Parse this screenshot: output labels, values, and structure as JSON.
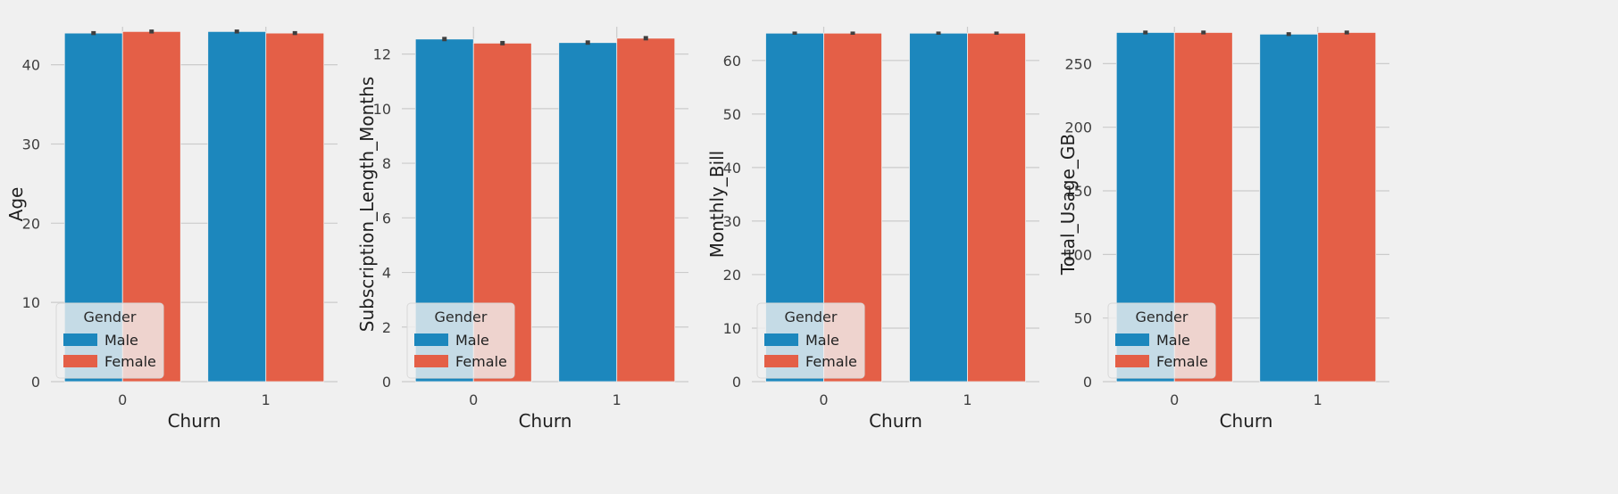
{
  "colors": {
    "background": "#f0f0f0",
    "grid": "#cbcbcb",
    "male": "#1c87bd",
    "female": "#e45f47",
    "errorbar": "#3f3f3f",
    "legend_bg": "#f0f0f0"
  },
  "chart_data": [
    {
      "type": "bar",
      "xlabel": "Churn",
      "ylabel": "Age",
      "categories": [
        "0",
        "1"
      ],
      "ylim": [
        0,
        44.8
      ],
      "yticks": [
        0,
        10,
        20,
        30,
        40
      ],
      "grid": true,
      "legend": {
        "title": "Gender",
        "placement": "lower-left"
      },
      "series": [
        {
          "name": "Male",
          "values": [
            44.0,
            44.2
          ],
          "err": [
            0.25,
            0.25
          ]
        },
        {
          "name": "Female",
          "values": [
            44.2,
            44.0
          ],
          "err": [
            0.25,
            0.25
          ]
        }
      ]
    },
    {
      "type": "bar",
      "xlabel": "Churn",
      "ylabel": "Subscription_Length_Months",
      "categories": [
        "0",
        "1"
      ],
      "ylim": [
        0,
        13.0
      ],
      "yticks": [
        0,
        2,
        4,
        6,
        8,
        10,
        12
      ],
      "grid": true,
      "legend": {
        "title": "Gender",
        "placement": "lower-left"
      },
      "series": [
        {
          "name": "Male",
          "values": [
            12.55,
            12.42
          ],
          "err": [
            0.08,
            0.08
          ]
        },
        {
          "name": "Female",
          "values": [
            12.4,
            12.58
          ],
          "err": [
            0.08,
            0.08
          ]
        }
      ]
    },
    {
      "type": "bar",
      "xlabel": "Churn",
      "ylabel": "Monthly_Bill",
      "categories": [
        "0",
        "1"
      ],
      "ylim": [
        0,
        66.3
      ],
      "yticks": [
        0,
        10,
        20,
        30,
        40,
        50,
        60
      ],
      "grid": true,
      "legend": {
        "title": "Gender",
        "placement": "lower-left"
      },
      "series": [
        {
          "name": "Male",
          "values": [
            65.1,
            65.1
          ],
          "err": [
            0.3,
            0.3
          ]
        },
        {
          "name": "Female",
          "values": [
            65.1,
            65.1
          ],
          "err": [
            0.3,
            0.3
          ]
        }
      ]
    },
    {
      "type": "bar",
      "xlabel": "Churn",
      "ylabel": "Total_Usage_GB",
      "categories": [
        "0",
        "1"
      ],
      "ylim": [
        0,
        279
      ],
      "yticks": [
        0,
        50,
        100,
        150,
        200,
        250
      ],
      "grid": true,
      "legend": {
        "title": "Gender",
        "placement": "lower-left"
      },
      "series": [
        {
          "name": "Male",
          "values": [
            274.5,
            273.2
          ],
          "err": [
            1.5,
            1.5
          ]
        },
        {
          "name": "Female",
          "values": [
            274.5,
            274.5
          ],
          "err": [
            1.5,
            1.5
          ]
        }
      ]
    }
  ]
}
